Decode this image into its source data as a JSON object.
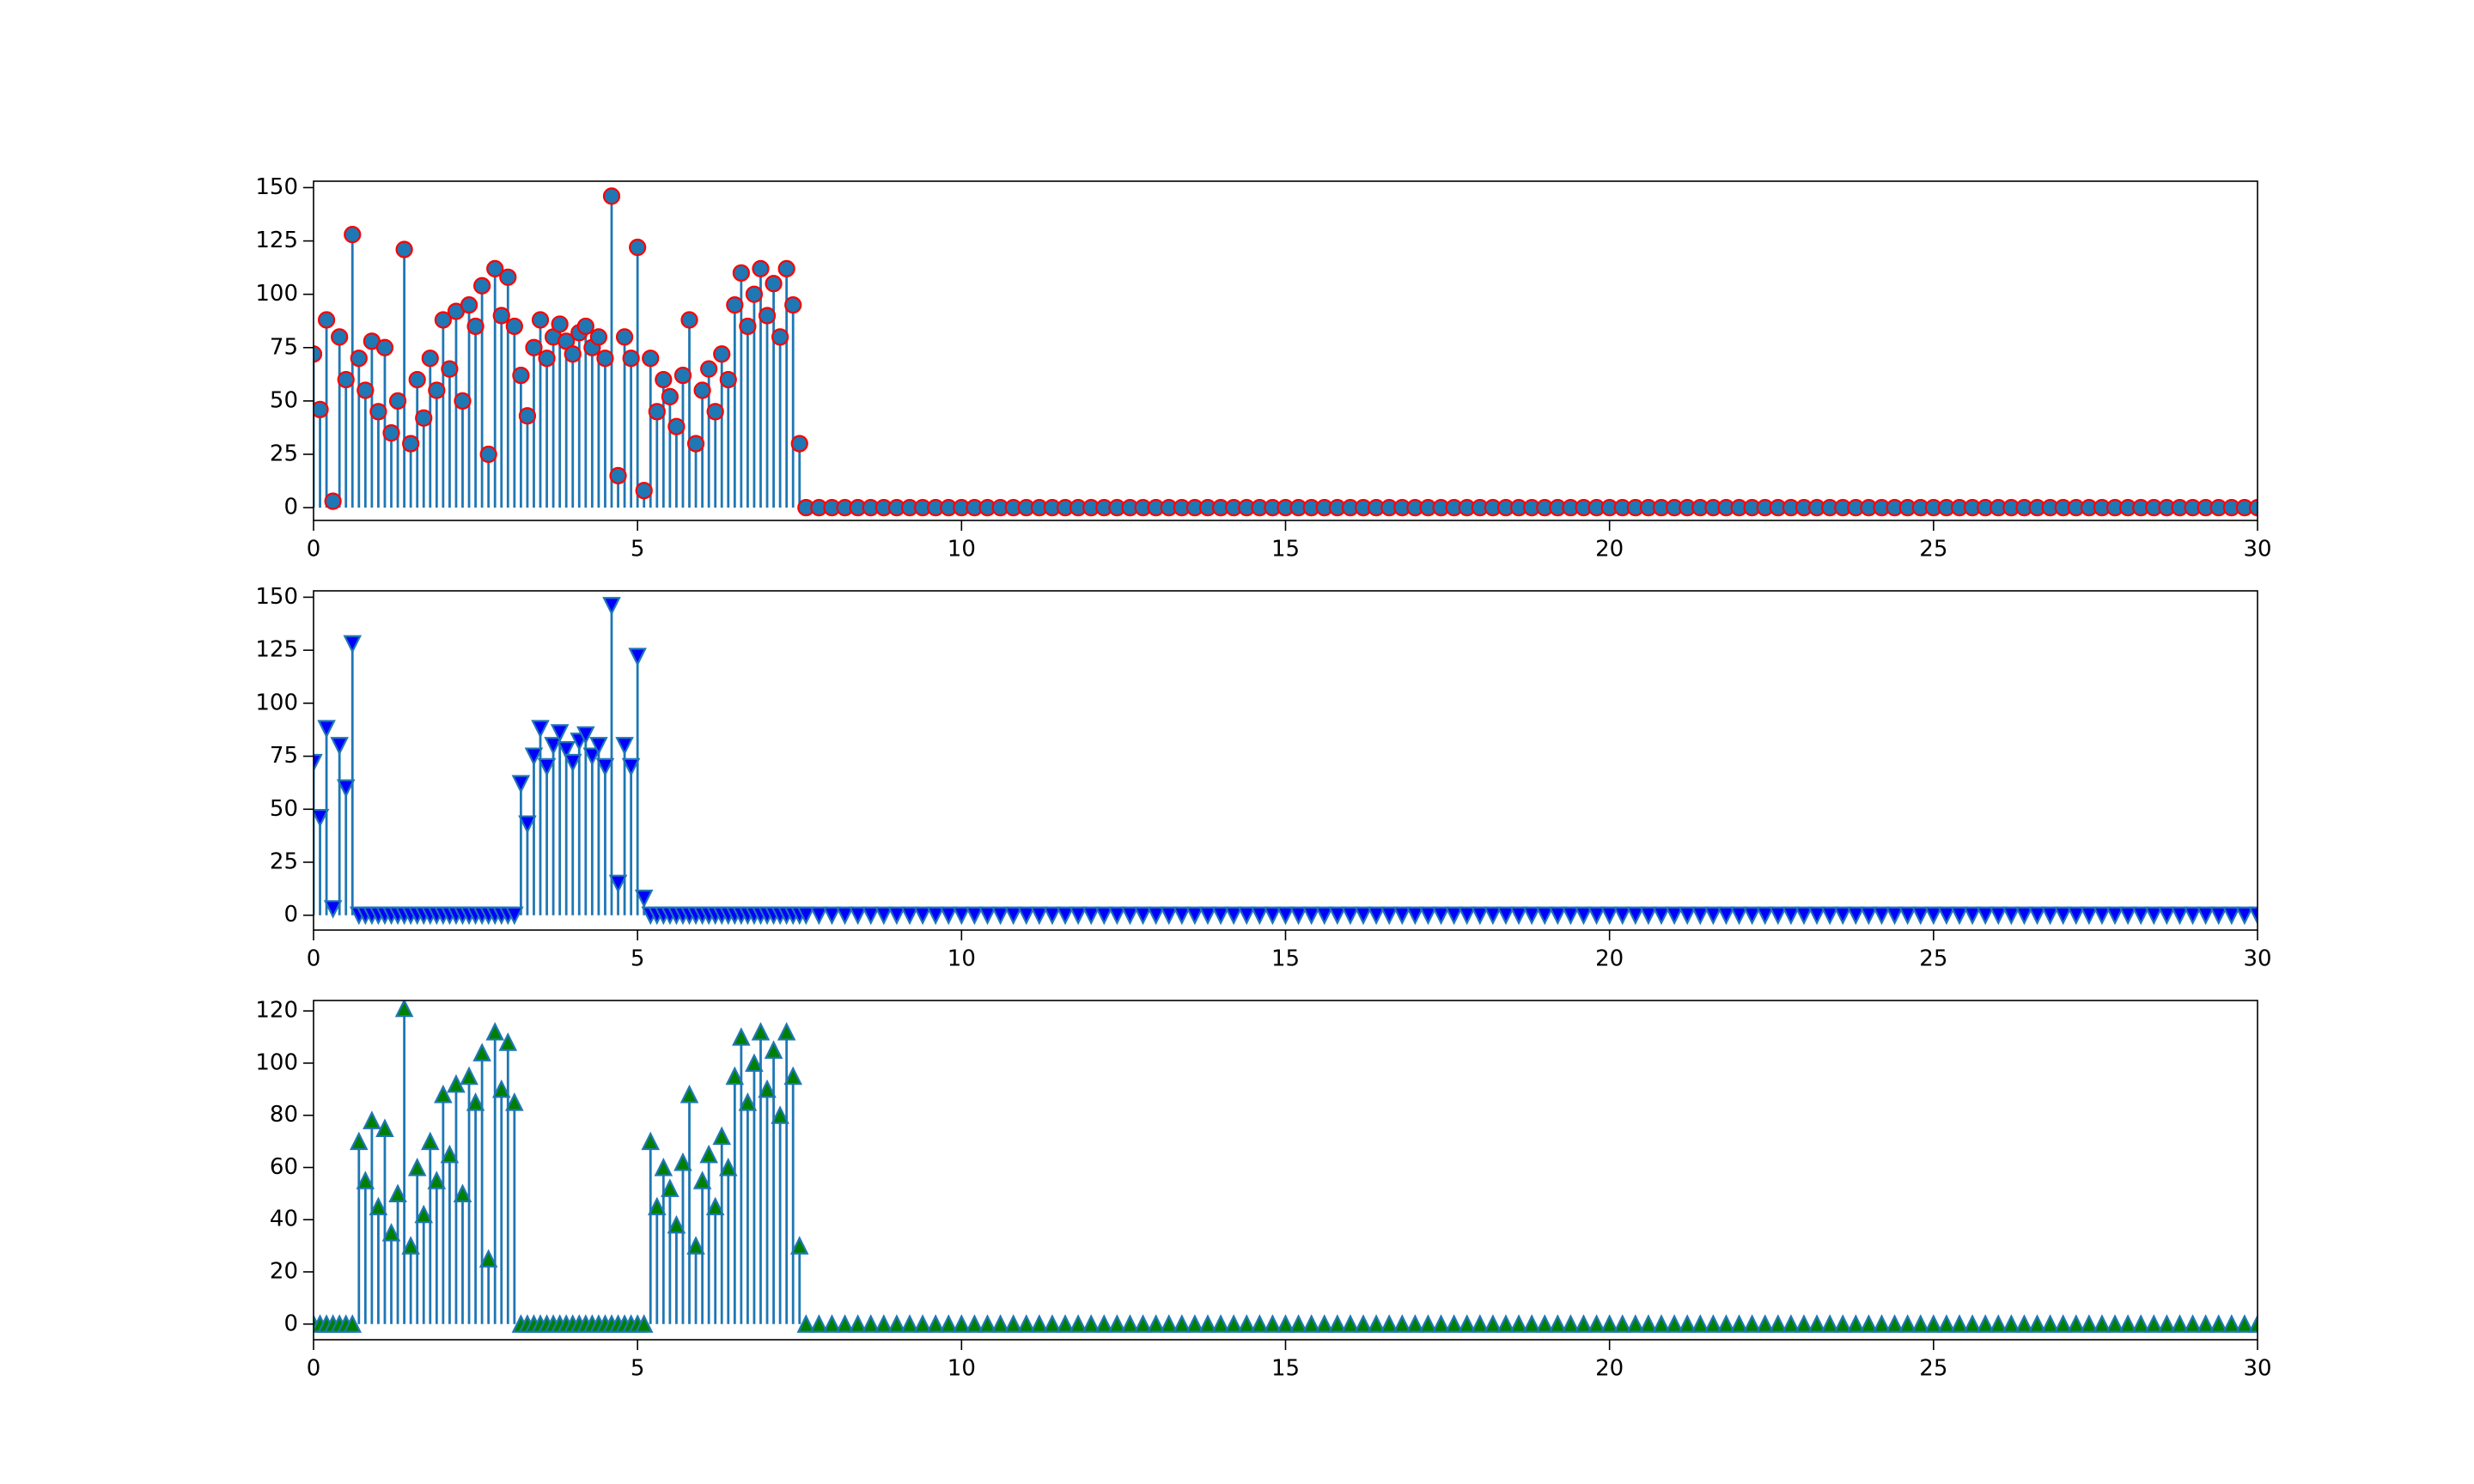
{
  "chart_data": [
    {
      "type": "stem",
      "marker": "circle",
      "color": "#1f77b4",
      "marker_face": "#1f77b4",
      "marker_edge": "#ff0000",
      "xlim": [
        0,
        30
      ],
      "xticks": [
        0,
        5,
        10,
        15,
        20,
        25,
        30
      ],
      "ylim": [
        -6,
        153
      ],
      "yticks": [
        0,
        25,
        50,
        75,
        100,
        125,
        150
      ],
      "x": [
        0,
        0.1,
        0.2,
        0.3,
        0.4,
        0.5,
        0.6,
        0.7,
        0.8,
        0.9,
        1,
        1.1,
        1.2,
        1.3,
        1.4,
        1.5,
        1.6,
        1.7,
        1.8,
        1.9,
        2,
        2.1,
        2.2,
        2.3,
        2.4,
        2.5,
        2.6,
        2.7,
        2.8,
        2.9,
        3,
        3.1,
        3.2,
        3.3,
        3.4,
        3.5,
        3.6,
        3.7,
        3.8,
        3.9,
        4,
        4.1,
        4.2,
        4.3,
        4.4,
        4.5,
        4.6,
        4.7,
        4.8,
        4.9,
        5,
        5.1,
        5.2,
        5.3,
        5.4,
        5.5,
        5.6,
        5.7,
        5.8,
        5.9,
        6,
        6.1,
        6.2,
        6.3,
        6.4,
        6.5,
        6.6,
        6.7,
        6.8,
        6.9,
        7,
        7.1,
        7.2,
        7.3,
        7.4,
        7.5,
        7.6,
        7.8,
        8,
        8.2,
        8.4,
        8.6,
        8.8,
        9,
        9.2,
        9.4,
        9.6,
        9.8,
        10,
        10.2,
        10.4,
        10.6,
        10.8,
        11,
        11.2,
        11.4,
        11.6,
        11.8,
        12,
        12.2,
        12.4,
        12.6,
        12.8,
        13,
        13.2,
        13.4,
        13.6,
        13.8,
        14,
        14.2,
        14.4,
        14.6,
        14.8,
        15,
        15.2,
        15.4,
        15.6,
        15.8,
        16,
        16.2,
        16.4,
        16.6,
        16.8,
        17,
        17.2,
        17.4,
        17.6,
        17.8,
        18,
        18.2,
        18.4,
        18.6,
        18.8,
        19,
        19.2,
        19.4,
        19.6,
        19.8,
        20,
        20.2,
        20.4,
        20.6,
        20.8,
        21,
        21.2,
        21.4,
        21.6,
        21.8,
        22,
        22.2,
        22.4,
        22.6,
        22.8,
        23,
        23.2,
        23.4,
        23.6,
        23.8,
        24,
        24.2,
        24.4,
        24.6,
        24.8,
        25,
        25.2,
        25.4,
        25.6,
        25.8,
        26,
        26.2,
        26.4,
        26.6,
        26.8,
        27,
        27.2,
        27.4,
        27.6,
        27.8,
        28,
        28.2,
        28.4,
        28.6,
        28.8,
        29,
        29.2,
        29.4,
        29.6,
        29.8,
        30
      ],
      "values": [
        72,
        46,
        88,
        3,
        80,
        60,
        128,
        70,
        55,
        78,
        45,
        75,
        35,
        50,
        121,
        30,
        60,
        42,
        70,
        55,
        88,
        65,
        92,
        50,
        95,
        85,
        104,
        25,
        112,
        90,
        108,
        85,
        62,
        43,
        75,
        88,
        70,
        80,
        86,
        78,
        72,
        82,
        85,
        75,
        80,
        70,
        146,
        15,
        80,
        70,
        122,
        8,
        70,
        45,
        60,
        52,
        38,
        62,
        88,
        30,
        55,
        65,
        45,
        72,
        60,
        95,
        110,
        85,
        100,
        112,
        90,
        105,
        80,
        112,
        95,
        30,
        0,
        0,
        0,
        0,
        0,
        0,
        0,
        0,
        0,
        0,
        0,
        0,
        0,
        0,
        0,
        0,
        0,
        0,
        0,
        0,
        0,
        0,
        0,
        0,
        0,
        0,
        0,
        0,
        0,
        0,
        0,
        0,
        0,
        0,
        0,
        0,
        0,
        0,
        0,
        0,
        0,
        0,
        0,
        0,
        0,
        0,
        0,
        0,
        0,
        0,
        0,
        0,
        0,
        0,
        0,
        0,
        0,
        0,
        0,
        0,
        0,
        0,
        0,
        0,
        0,
        0,
        0,
        0,
        0,
        0,
        0,
        0,
        0,
        0,
        0,
        0,
        0,
        0,
        0,
        0,
        0,
        0,
        0,
        0,
        0,
        0,
        0,
        0,
        0,
        0,
        0,
        0,
        0,
        0,
        0,
        0,
        0,
        0,
        0,
        0,
        0,
        0,
        0,
        0,
        0,
        0,
        0,
        0,
        0,
        0,
        0,
        0,
        0
      ]
    },
    {
      "type": "stem",
      "marker": "triangle-down",
      "color": "#1f77b4",
      "marker_face": "#0000ff",
      "marker_edge": "#1f77b4",
      "xlim": [
        0,
        30
      ],
      "xticks": [
        0,
        5,
        10,
        15,
        20,
        25,
        30
      ],
      "ylim": [
        -7,
        153
      ],
      "yticks": [
        0,
        25,
        50,
        75,
        100,
        125,
        150
      ],
      "x": [
        0,
        0.1,
        0.2,
        0.3,
        0.4,
        0.5,
        0.6,
        0.7,
        0.8,
        0.9,
        1,
        1.1,
        1.2,
        1.3,
        1.4,
        1.5,
        1.6,
        1.7,
        1.8,
        1.9,
        2,
        2.1,
        2.2,
        2.3,
        2.4,
        2.5,
        2.6,
        2.7,
        2.8,
        2.9,
        3,
        3.1,
        3.2,
        3.3,
        3.4,
        3.5,
        3.6,
        3.7,
        3.8,
        3.9,
        4,
        4.1,
        4.2,
        4.3,
        4.4,
        4.5,
        4.6,
        4.7,
        4.8,
        4.9,
        5,
        5.1,
        5.2,
        5.3,
        5.4,
        5.5,
        5.6,
        5.7,
        5.8,
        5.9,
        6,
        6.1,
        6.2,
        6.3,
        6.4,
        6.5,
        6.6,
        6.7,
        6.8,
        6.9,
        7,
        7.1,
        7.2,
        7.3,
        7.4,
        7.5,
        7.6,
        7.8,
        8,
        8.2,
        8.4,
        8.6,
        8.8,
        9,
        9.2,
        9.4,
        9.6,
        9.8,
        10,
        10.2,
        10.4,
        10.6,
        10.8,
        11,
        11.2,
        11.4,
        11.6,
        11.8,
        12,
        12.2,
        12.4,
        12.6,
        12.8,
        13,
        13.2,
        13.4,
        13.6,
        13.8,
        14,
        14.2,
        14.4,
        14.6,
        14.8,
        15,
        15.2,
        15.4,
        15.6,
        15.8,
        16,
        16.2,
        16.4,
        16.6,
        16.8,
        17,
        17.2,
        17.4,
        17.6,
        17.8,
        18,
        18.2,
        18.4,
        18.6,
        18.8,
        19,
        19.2,
        19.4,
        19.6,
        19.8,
        20,
        20.2,
        20.4,
        20.6,
        20.8,
        21,
        21.2,
        21.4,
        21.6,
        21.8,
        22,
        22.2,
        22.4,
        22.6,
        22.8,
        23,
        23.2,
        23.4,
        23.6,
        23.8,
        24,
        24.2,
        24.4,
        24.6,
        24.8,
        25,
        25.2,
        25.4,
        25.6,
        25.8,
        26,
        26.2,
        26.4,
        26.6,
        26.8,
        27,
        27.2,
        27.4,
        27.6,
        27.8,
        28,
        28.2,
        28.4,
        28.6,
        28.8,
        29,
        29.2,
        29.4,
        29.6,
        29.8,
        30
      ],
      "values": [
        72,
        46,
        88,
        3,
        80,
        60,
        128,
        0,
        0,
        0,
        0,
        0,
        0,
        0,
        0,
        0,
        0,
        0,
        0,
        0,
        0,
        0,
        0,
        0,
        0,
        0,
        0,
        0,
        0,
        0,
        0,
        0,
        62,
        43,
        75,
        88,
        70,
        80,
        86,
        78,
        72,
        82,
        85,
        75,
        80,
        70,
        146,
        15,
        80,
        70,
        122,
        8,
        0,
        0,
        0,
        0,
        0,
        0,
        0,
        0,
        0,
        0,
        0,
        0,
        0,
        0,
        0,
        0,
        0,
        0,
        0,
        0,
        0,
        0,
        0,
        0,
        0,
        0,
        0,
        0,
        0,
        0,
        0,
        0,
        0,
        0,
        0,
        0,
        0,
        0,
        0,
        0,
        0,
        0,
        0,
        0,
        0,
        0,
        0,
        0,
        0,
        0,
        0,
        0,
        0,
        0,
        0,
        0,
        0,
        0,
        0,
        0,
        0,
        0,
        0,
        0,
        0,
        0,
        0,
        0,
        0,
        0,
        0,
        0,
        0,
        0,
        0,
        0,
        0,
        0,
        0,
        0,
        0,
        0,
        0,
        0,
        0,
        0,
        0,
        0,
        0,
        0,
        0,
        0,
        0,
        0,
        0,
        0,
        0,
        0,
        0,
        0,
        0,
        0,
        0,
        0,
        0,
        0,
        0,
        0,
        0,
        0,
        0,
        0,
        0,
        0,
        0,
        0,
        0,
        0,
        0,
        0,
        0,
        0,
        0,
        0,
        0,
        0,
        0,
        0,
        0,
        0,
        0,
        0,
        0,
        0,
        0,
        0,
        0
      ]
    },
    {
      "type": "stem",
      "marker": "triangle-up",
      "color": "#1f77b4",
      "marker_face": "#008000",
      "marker_edge": "#1f77b4",
      "xlim": [
        0,
        30
      ],
      "xticks": [
        0,
        5,
        10,
        15,
        20,
        25,
        30
      ],
      "ylim": [
        -6,
        124
      ],
      "yticks": [
        0,
        20,
        40,
        60,
        80,
        100,
        120
      ],
      "x": [
        0,
        0.1,
        0.2,
        0.3,
        0.4,
        0.5,
        0.6,
        0.7,
        0.8,
        0.9,
        1,
        1.1,
        1.2,
        1.3,
        1.4,
        1.5,
        1.6,
        1.7,
        1.8,
        1.9,
        2,
        2.1,
        2.2,
        2.3,
        2.4,
        2.5,
        2.6,
        2.7,
        2.8,
        2.9,
        3,
        3.1,
        3.2,
        3.3,
        3.4,
        3.5,
        3.6,
        3.7,
        3.8,
        3.9,
        4,
        4.1,
        4.2,
        4.3,
        4.4,
        4.5,
        4.6,
        4.7,
        4.8,
        4.9,
        5,
        5.1,
        5.2,
        5.3,
        5.4,
        5.5,
        5.6,
        5.7,
        5.8,
        5.9,
        6,
        6.1,
        6.2,
        6.3,
        6.4,
        6.5,
        6.6,
        6.7,
        6.8,
        6.9,
        7,
        7.1,
        7.2,
        7.3,
        7.4,
        7.5,
        7.6,
        7.8,
        8,
        8.2,
        8.4,
        8.6,
        8.8,
        9,
        9.2,
        9.4,
        9.6,
        9.8,
        10,
        10.2,
        10.4,
        10.6,
        10.8,
        11,
        11.2,
        11.4,
        11.6,
        11.8,
        12,
        12.2,
        12.4,
        12.6,
        12.8,
        13,
        13.2,
        13.4,
        13.6,
        13.8,
        14,
        14.2,
        14.4,
        14.6,
        14.8,
        15,
        15.2,
        15.4,
        15.6,
        15.8,
        16,
        16.2,
        16.4,
        16.6,
        16.8,
        17,
        17.2,
        17.4,
        17.6,
        17.8,
        18,
        18.2,
        18.4,
        18.6,
        18.8,
        19,
        19.2,
        19.4,
        19.6,
        19.8,
        20,
        20.2,
        20.4,
        20.6,
        20.8,
        21,
        21.2,
        21.4,
        21.6,
        21.8,
        22,
        22.2,
        22.4,
        22.6,
        22.8,
        23,
        23.2,
        23.4,
        23.6,
        23.8,
        24,
        24.2,
        24.4,
        24.6,
        24.8,
        25,
        25.2,
        25.4,
        25.6,
        25.8,
        26,
        26.2,
        26.4,
        26.6,
        26.8,
        27,
        27.2,
        27.4,
        27.6,
        27.8,
        28,
        28.2,
        28.4,
        28.6,
        28.8,
        29,
        29.2,
        29.4,
        29.6,
        29.8,
        30
      ],
      "values": [
        0,
        0,
        0,
        0,
        0,
        0,
        0,
        70,
        55,
        78,
        45,
        75,
        35,
        50,
        121,
        30,
        60,
        42,
        70,
        55,
        88,
        65,
        92,
        50,
        95,
        85,
        104,
        25,
        112,
        90,
        108,
        85,
        0,
        0,
        0,
        0,
        0,
        0,
        0,
        0,
        0,
        0,
        0,
        0,
        0,
        0,
        0,
        0,
        0,
        0,
        0,
        0,
        70,
        45,
        60,
        52,
        38,
        62,
        88,
        30,
        55,
        65,
        45,
        72,
        60,
        95,
        110,
        85,
        100,
        112,
        90,
        105,
        80,
        112,
        95,
        30,
        0,
        0,
        0,
        0,
        0,
        0,
        0,
        0,
        0,
        0,
        0,
        0,
        0,
        0,
        0,
        0,
        0,
        0,
        0,
        0,
        0,
        0,
        0,
        0,
        0,
        0,
        0,
        0,
        0,
        0,
        0,
        0,
        0,
        0,
        0,
        0,
        0,
        0,
        0,
        0,
        0,
        0,
        0,
        0,
        0,
        0,
        0,
        0,
        0,
        0,
        0,
        0,
        0,
        0,
        0,
        0,
        0,
        0,
        0,
        0,
        0,
        0,
        0,
        0,
        0,
        0,
        0,
        0,
        0,
        0,
        0,
        0,
        0,
        0,
        0,
        0,
        0,
        0,
        0,
        0,
        0,
        0,
        0,
        0,
        0,
        0,
        0,
        0,
        0,
        0,
        0,
        0,
        0,
        0,
        0,
        0,
        0,
        0,
        0,
        0,
        0,
        0,
        0,
        0,
        0,
        0,
        0,
        0,
        0,
        0,
        0,
        0,
        0
      ]
    }
  ]
}
